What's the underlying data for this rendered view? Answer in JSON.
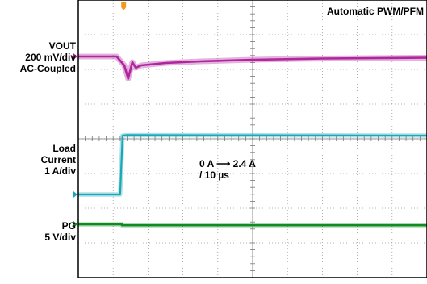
{
  "chart_data": {
    "type": "line",
    "title": "Automatic PWM/PFM",
    "annotation": {
      "line1": "0 A ⟶ 2.4 A",
      "line2": "/ 10 µs"
    },
    "grid": true,
    "divisions": {
      "x": 10,
      "y": 8
    },
    "channels": [
      {
        "id": "vout",
        "name_lines": [
          "VOUT",
          "200 mV/div",
          "AC-Coupled"
        ],
        "color": "#b0269d",
        "points": [
          [
            0,
            0.0
          ],
          [
            1.1,
            0.0
          ],
          [
            1.32,
            -0.22
          ],
          [
            1.43,
            -0.55
          ],
          [
            1.55,
            -0.14
          ],
          [
            1.65,
            -0.28
          ],
          [
            1.8,
            -0.22
          ],
          [
            2.5,
            -0.16
          ],
          [
            3.5,
            -0.12
          ],
          [
            5,
            -0.08
          ],
          [
            7,
            -0.05
          ],
          [
            10,
            -0.03
          ]
        ]
      },
      {
        "id": "load",
        "name_lines": [
          "Load",
          "Current",
          "1 A/div"
        ],
        "color": "#1aa7b8",
        "points": [
          [
            0,
            0.0
          ],
          [
            1.2,
            0.0
          ],
          [
            1.27,
            2.4
          ],
          [
            1.4,
            2.42
          ],
          [
            10,
            2.4
          ]
        ]
      },
      {
        "id": "pg",
        "name_lines": [
          "PG",
          "5 V/div"
        ],
        "color": "#0f8c1f",
        "points": [
          [
            0,
            0.0
          ],
          [
            1.25,
            0.0
          ],
          [
            1.25,
            -0.04
          ],
          [
            10,
            -0.04
          ]
        ]
      }
    ],
    "trigger_position": 1.3
  }
}
